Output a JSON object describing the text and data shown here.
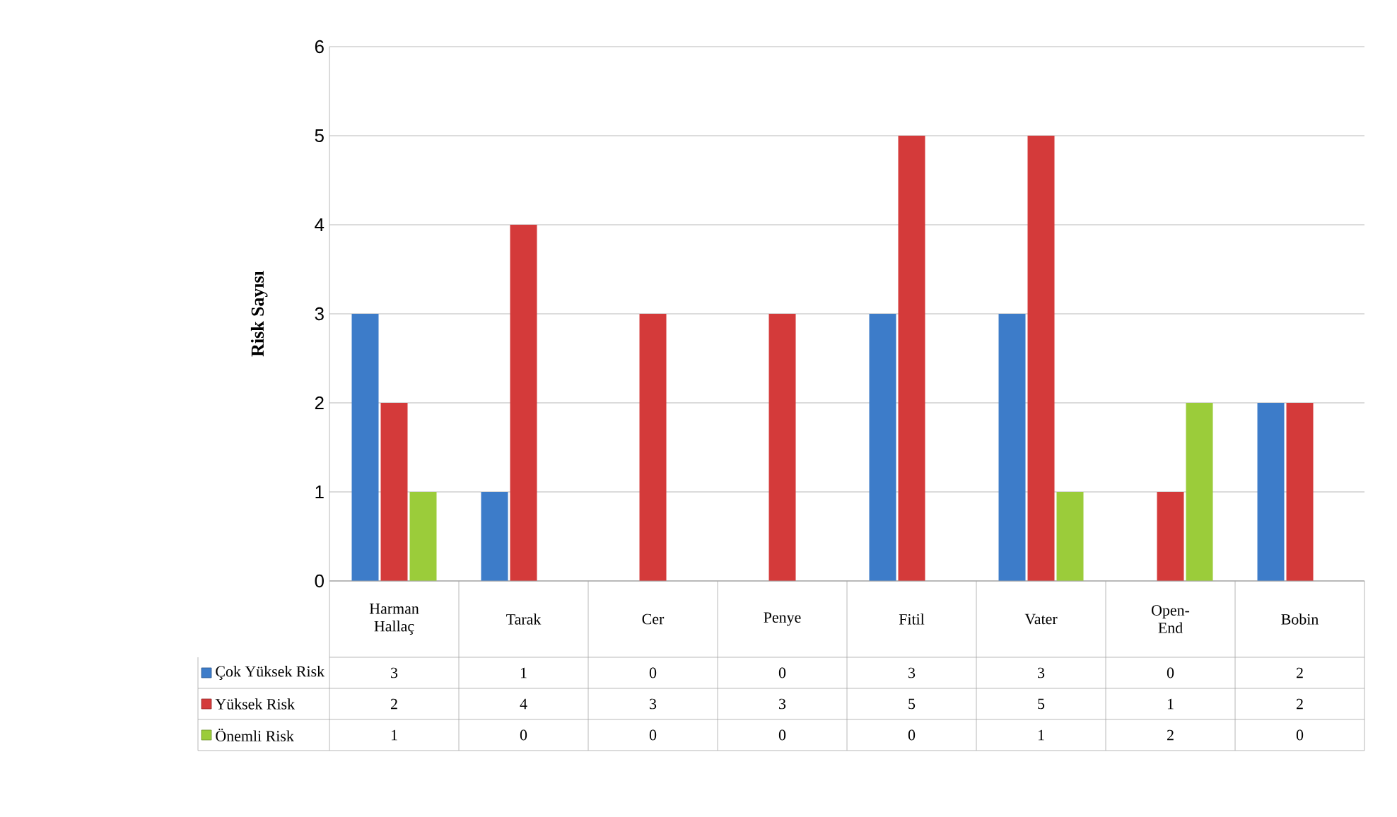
{
  "chart_data": {
    "type": "bar",
    "ylabel": "Risk Sayısı",
    "categories": [
      "Harman Hallaç",
      "Tarak",
      "Cer",
      "Penye",
      "Fitil",
      "Vater",
      "Open-End",
      "Bobin"
    ],
    "series": [
      {
        "name": "Çok Yüksek Risk",
        "color": "#3d7cc9",
        "values": [
          3,
          1,
          0,
          0,
          3,
          3,
          0,
          2
        ]
      },
      {
        "name": "Yüksek Risk",
        "color": "#d43a3a",
        "values": [
          2,
          4,
          3,
          3,
          5,
          5,
          1,
          2
        ]
      },
      {
        "name": "Önemli Risk",
        "color": "#9bcc3a",
        "values": [
          1,
          0,
          0,
          0,
          0,
          1,
          2,
          0
        ]
      }
    ],
    "ylim": [
      0,
      6
    ],
    "yticks": [
      0,
      1,
      2,
      3,
      4,
      5,
      6
    ],
    "grid": "y",
    "legend": "bottom left",
    "data_labels": true
  }
}
